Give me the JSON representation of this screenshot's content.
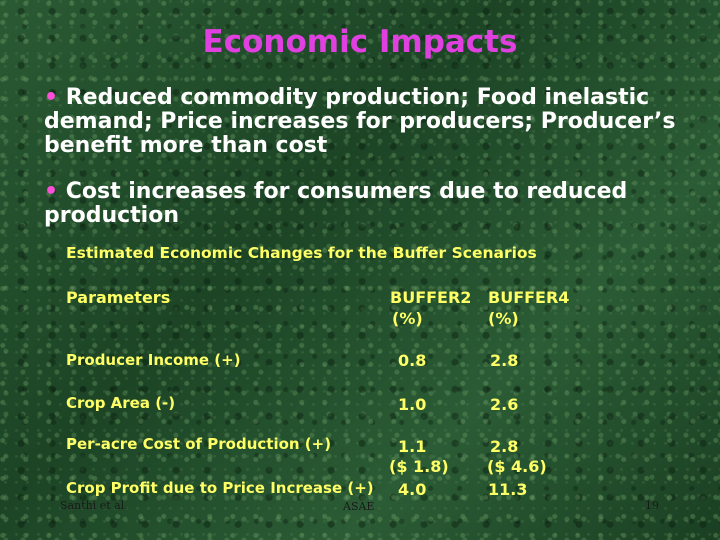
{
  "slide": {
    "title": "Economic Impacts",
    "bullets": [
      {
        "marker": "•",
        "text": " Reduced commodity production; Food inelastic demand; Price increases for producers; Producer’s benefit more than cost"
      },
      {
        "marker": "•",
        "text": " Cost increases for consumers due to reduced production"
      }
    ]
  },
  "table": {
    "title": "Estimated Economic Changes for the Buffer Scenarios",
    "headers": {
      "parameters": "Parameters",
      "buffer2": "BUFFER2",
      "buffer4": "BUFFER4",
      "buffer2_unit": "(%)",
      "buffer4_unit": "(%)"
    },
    "rows": [
      {
        "label": "Producer Income (+)",
        "buffer2": "0.8",
        "buffer4": "2.8"
      },
      {
        "label": "Crop Area (-)",
        "buffer2": "1.0",
        "buffer4": "2.6"
      },
      {
        "label": "Per-acre Cost of Production (+)",
        "buffer2": "1.1",
        "buffer4": "2.8",
        "buffer2_sub": "($ 1.8)",
        "buffer4_sub": "($ 4.6)"
      },
      {
        "label": "Crop Profit due to Price Increase (+)",
        "buffer2": "4.0",
        "buffer4": "11.3"
      }
    ]
  },
  "footer": {
    "author": "Santhi et al.",
    "org": "ASAE",
    "page": "19"
  },
  "colors": {
    "title": "#e040e0",
    "bullet_text": "#ffffff",
    "bullet_marker": "#ff4fd8",
    "table_text": "#ffff66",
    "background": "#1f4a2a"
  }
}
